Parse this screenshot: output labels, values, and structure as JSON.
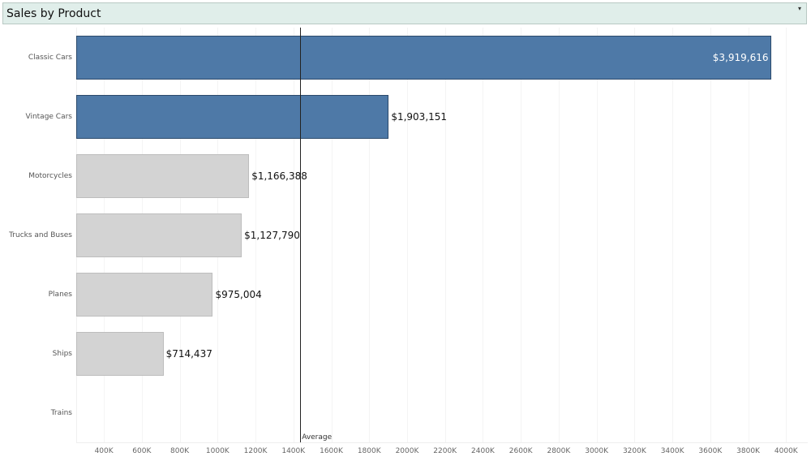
{
  "chart_data": {
    "type": "bar",
    "orientation": "horizontal",
    "title": "Sales by Product",
    "categories": [
      "Classic Cars",
      "Vintage Cars",
      "Motorcycles",
      "Trucks and Buses",
      "Planes",
      "Ships",
      "Trains"
    ],
    "values": [
      3919616,
      1903151,
      1166388,
      1127790,
      975004,
      714437,
      null
    ],
    "data_labels": [
      "$3,919,616",
      "$1,903,151",
      "$1,166,388",
      "$1,127,790",
      "$975,004",
      "$714,437",
      ""
    ],
    "highlighted": [
      true,
      true,
      false,
      false,
      false,
      false,
      false
    ],
    "xlim": [
      254000,
      4110000
    ],
    "xticks": [
      400000,
      600000,
      800000,
      1000000,
      1200000,
      1400000,
      1600000,
      1800000,
      2000000,
      2200000,
      2400000,
      2600000,
      2800000,
      3000000,
      3200000,
      3400000,
      3600000,
      3800000,
      4000000
    ],
    "xtick_labels": [
      "400K",
      "600K",
      "800K",
      "1000K",
      "1200K",
      "1400K",
      "1600K",
      "1800K",
      "2000K",
      "2200K",
      "2400K",
      "2600K",
      "2800K",
      "3000K",
      "3200K",
      "3400K",
      "3600K",
      "3800K",
      "4000K"
    ],
    "reference_line": {
      "label": "Average",
      "value": 1436000
    },
    "colors": {
      "highlight": "#4e79a7",
      "highlight_border": "#2c4a6b",
      "muted": "#d3d3d3",
      "muted_border": "#bdbdbd"
    }
  },
  "header": {
    "title": "Sales by Product",
    "dropdown_icon": "▾"
  }
}
